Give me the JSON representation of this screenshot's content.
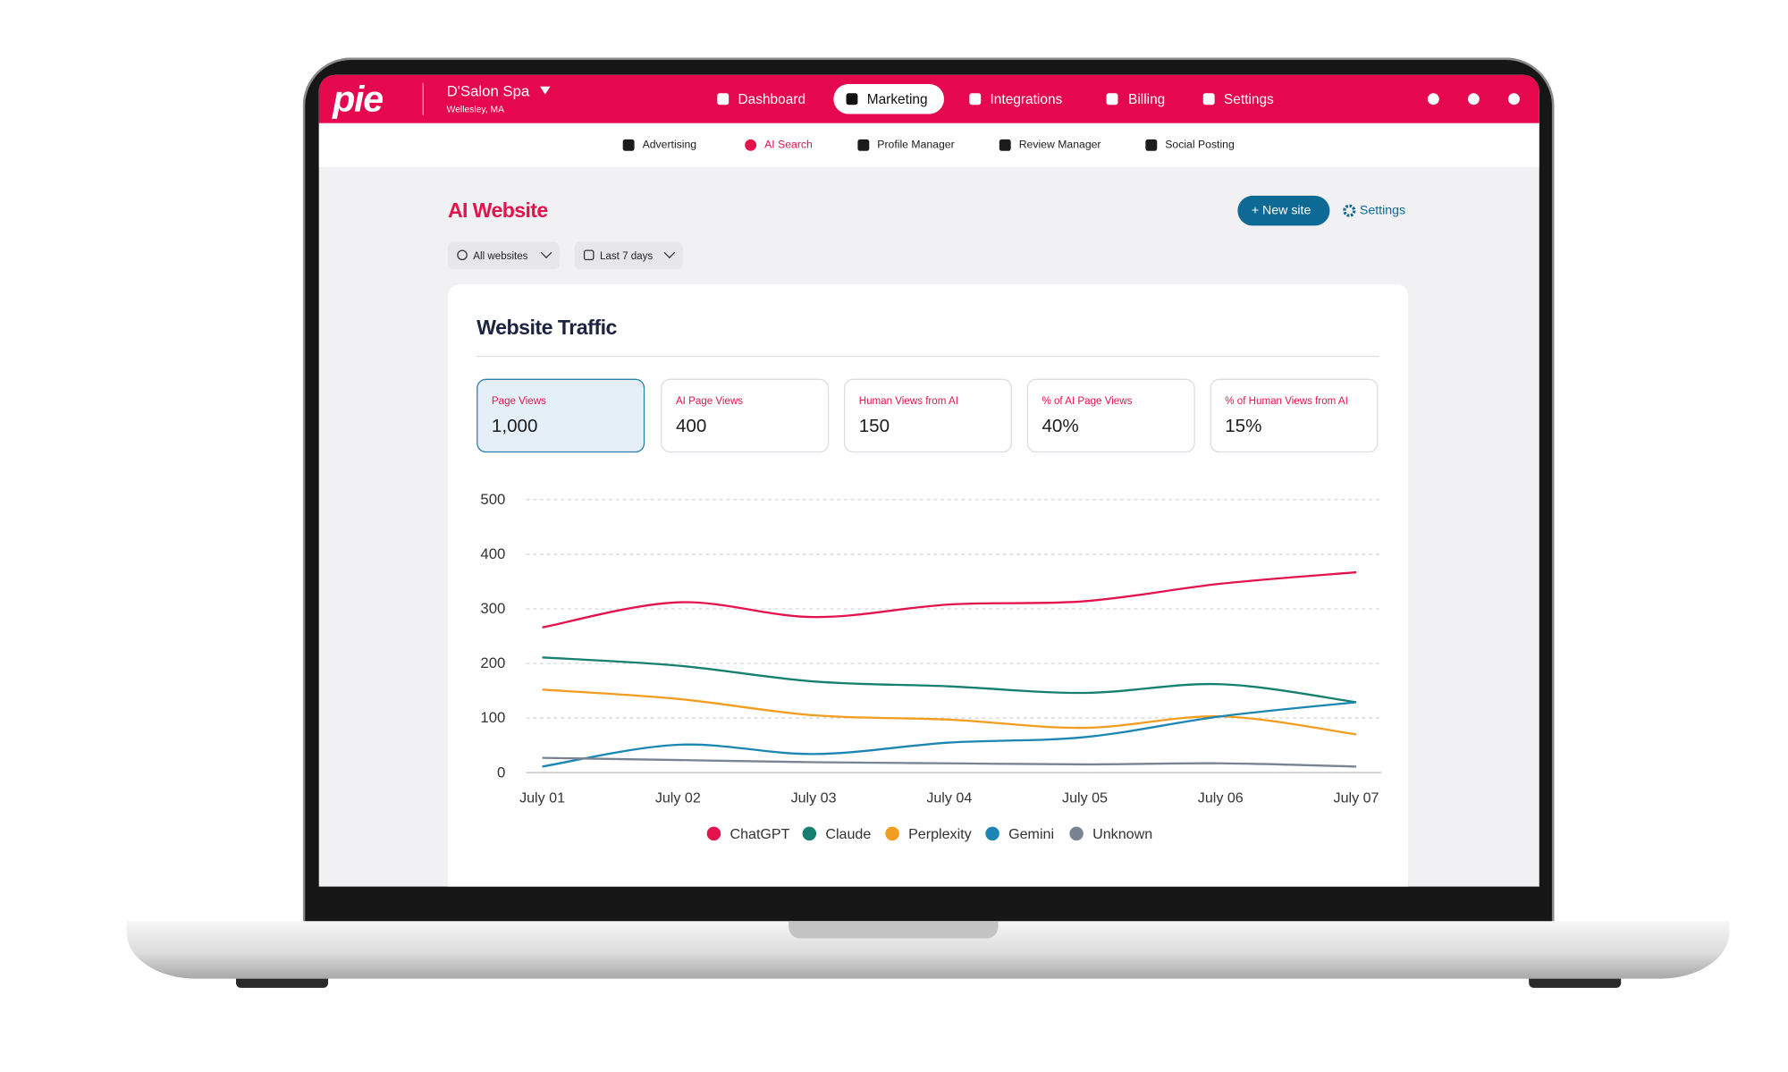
{
  "header": {
    "logo": "pie",
    "business_name": "D'Salon Spa",
    "location": "Wellesley, MA",
    "nav": [
      "Dashboard",
      "Marketing",
      "Integrations",
      "Billing",
      "Settings"
    ]
  },
  "subnav": [
    "Advertising",
    "AI Search",
    "Profile Manager",
    "Review Manager",
    "Social Posting"
  ],
  "page": {
    "title": "AI Website",
    "new_site": "+ New site",
    "settings": "Settings",
    "filters": [
      "All websites",
      "Last 7 days"
    ]
  },
  "card": {
    "title": "Website Traffic",
    "metrics": [
      {
        "label": "Page Views",
        "value": "1,000"
      },
      {
        "label": "AI Page Views",
        "value": "400"
      },
      {
        "label": "Human Views from AI",
        "value": "150"
      },
      {
        "label": "% of AI Page Views",
        "value": "40%"
      },
      {
        "label": "% of Human Views from AI",
        "value": "15%"
      }
    ]
  },
  "chart_data": {
    "type": "line",
    "categories": [
      "July 01",
      "July 02",
      "July 03",
      "July 04",
      "July 05",
      "July 06",
      "July 07"
    ],
    "series": [
      {
        "name": "ChatGPT",
        "color": "#e3134e",
        "values": [
          266,
          312,
          285,
          308,
          314,
          346,
          367
        ]
      },
      {
        "name": "Claude",
        "color": "#15806f",
        "values": [
          211,
          196,
          167,
          158,
          146,
          162,
          129
        ]
      },
      {
        "name": "Perplexity",
        "color": "#f29d1f",
        "values": [
          152,
          135,
          105,
          97,
          82,
          103,
          70
        ]
      },
      {
        "name": "Gemini",
        "color": "#1b86b4",
        "values": [
          11,
          51,
          34,
          55,
          65,
          103,
          129
        ]
      },
      {
        "name": "Unknown",
        "color": "#7a8391",
        "values": [
          27,
          23,
          19,
          17,
          15,
          17,
          11
        ]
      }
    ],
    "ylim": [
      0,
      500
    ],
    "yticks": [
      0,
      100,
      200,
      300,
      400,
      500
    ],
    "grid": true,
    "legend": "bottom"
  }
}
